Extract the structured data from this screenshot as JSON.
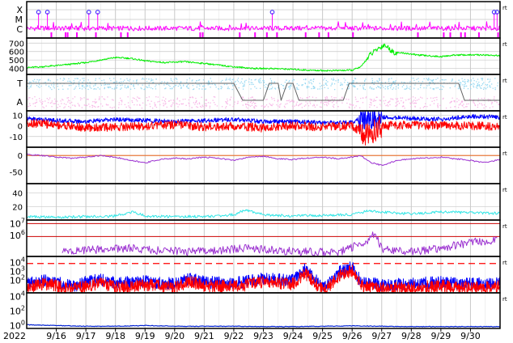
{
  "year_label": "2022",
  "side_marker": "rt",
  "colors": {
    "frame": "#000000",
    "grid": "#c8c8c8",
    "magenta": "#ff00ff",
    "green": "#00ee00",
    "lightblue": "#99d9f2",
    "pink": "#f7b6e6",
    "gray": "#606060",
    "red": "#ff0000",
    "blue": "#0000ff",
    "purple": "#9b30d0",
    "orange": "#e87a3c",
    "cyan": "#33e6e6",
    "darkred": "#cc0000",
    "navy": "#0020d0"
  },
  "chart_data": [
    {
      "id": "flare-class",
      "type": "line",
      "x_ticks": [
        "9/16",
        "9/17",
        "9/18",
        "9/19",
        "9/20",
        "9/21",
        "9/22",
        "9/23",
        "9/24",
        "9/25",
        "9/26",
        "9/27",
        "9/28",
        "9/29",
        "9/30"
      ],
      "y_tick_labels": [
        "X",
        "M",
        "C"
      ],
      "flare_marks_day": [
        15.4,
        15.7,
        17.1,
        17.4,
        23.3,
        30.8,
        30.9
      ],
      "flare_level": "M-X",
      "series": [
        {
          "color_key": "magenta",
          "baseline_class": "C"
        }
      ]
    },
    {
      "id": "solar-wind-speed",
      "type": "line",
      "y_ticks": [
        400,
        500,
        600,
        700
      ],
      "ylim": [
        330,
        760
      ],
      "series": [
        {
          "color_key": "green",
          "profile": [
            [
              15.0,
              410
            ],
            [
              15.5,
              420
            ],
            [
              16.2,
              440
            ],
            [
              17.0,
              470
            ],
            [
              17.5,
              500
            ],
            [
              18.0,
              530
            ],
            [
              18.5,
              520
            ],
            [
              19.0,
              490
            ],
            [
              19.7,
              470
            ],
            [
              20.3,
              480
            ],
            [
              21.0,
              460
            ],
            [
              21.5,
              440
            ],
            [
              22.0,
              420
            ],
            [
              22.7,
              400
            ],
            [
              23.3,
              400
            ],
            [
              24.0,
              390
            ],
            [
              24.5,
              380
            ],
            [
              25.2,
              375
            ],
            [
              26.0,
              380
            ],
            [
              26.3,
              420
            ],
            [
              26.6,
              560
            ],
            [
              26.9,
              640
            ],
            [
              27.1,
              680
            ],
            [
              27.4,
              590
            ],
            [
              27.8,
              580
            ],
            [
              28.2,
              560
            ],
            [
              28.6,
              550
            ],
            [
              29.0,
              540
            ],
            [
              29.5,
              560
            ],
            [
              30.0,
              560
            ],
            [
              30.5,
              560
            ],
            [
              31.0,
              550
            ]
          ]
        }
      ]
    },
    {
      "id": "imf-sector",
      "type": "area",
      "y_tick_labels": [
        "T",
        "A"
      ],
      "series": [
        {
          "color_key": "lightblue",
          "name": "T"
        },
        {
          "color_key": "pink",
          "name": "A"
        },
        {
          "color_key": "gray",
          "sector_levels": [
            [
              15.0,
              1
            ],
            [
              22.0,
              1
            ],
            [
              22.3,
              0
            ],
            [
              23.0,
              0
            ],
            [
              23.2,
              1
            ],
            [
              23.5,
              1
            ],
            [
              23.6,
              0
            ],
            [
              23.8,
              1
            ],
            [
              24.0,
              1
            ],
            [
              24.2,
              0
            ],
            [
              25.7,
              0
            ],
            [
              25.9,
              1
            ],
            [
              29.6,
              1
            ],
            [
              29.8,
              0
            ],
            [
              31.0,
              0
            ]
          ]
        }
      ]
    },
    {
      "id": "imf-components",
      "type": "line",
      "y_ticks": [
        10,
        0,
        -10
      ],
      "ylim": [
        -20,
        14
      ],
      "series": [
        {
          "color_key": "blue",
          "profile": [
            [
              15.0,
              7
            ],
            [
              16.0,
              5
            ],
            [
              17.0,
              4
            ],
            [
              18.0,
              6
            ],
            [
              19.0,
              5
            ],
            [
              20.0,
              4
            ],
            [
              21.0,
              5
            ],
            [
              22.0,
              6
            ],
            [
              23.0,
              4
            ],
            [
              24.0,
              4
            ],
            [
              25.0,
              3
            ],
            [
              26.0,
              3
            ],
            [
              26.5,
              10
            ],
            [
              27.0,
              8
            ],
            [
              28.0,
              7
            ],
            [
              29.0,
              6
            ],
            [
              30.0,
              9
            ],
            [
              31.0,
              8
            ]
          ]
        },
        {
          "color_key": "red",
          "profile": [
            [
              15.0,
              3
            ],
            [
              16.0,
              1
            ],
            [
              17.0,
              -2
            ],
            [
              18.0,
              -1
            ],
            [
              19.0,
              0
            ],
            [
              20.0,
              1
            ],
            [
              21.0,
              -1
            ],
            [
              22.0,
              0
            ],
            [
              23.0,
              -2
            ],
            [
              24.0,
              0
            ],
            [
              25.0,
              -1
            ],
            [
              26.0,
              0
            ],
            [
              26.5,
              -10
            ],
            [
              27.0,
              0
            ],
            [
              28.0,
              1
            ],
            [
              29.0,
              0
            ],
            [
              30.0,
              0
            ],
            [
              31.0,
              -1
            ]
          ]
        }
      ]
    },
    {
      "id": "dst-index",
      "type": "line",
      "y_ticks": [
        0,
        -50
      ],
      "ylim": [
        -85,
        25
      ],
      "series": [
        {
          "color_key": "purple",
          "profile": [
            [
              15.0,
              3
            ],
            [
              15.5,
              0
            ],
            [
              16.0,
              -5
            ],
            [
              16.5,
              -8
            ],
            [
              17.0,
              -5
            ],
            [
              17.5,
              0
            ],
            [
              18.0,
              -5
            ],
            [
              18.5,
              -15
            ],
            [
              19.0,
              -22
            ],
            [
              19.5,
              -12
            ],
            [
              20.0,
              -8
            ],
            [
              20.5,
              -10
            ],
            [
              21.0,
              -5
            ],
            [
              21.5,
              -8
            ],
            [
              22.0,
              -15
            ],
            [
              22.5,
              -5
            ],
            [
              23.0,
              -2
            ],
            [
              23.5,
              -10
            ],
            [
              24.0,
              -12
            ],
            [
              24.5,
              -8
            ],
            [
              25.0,
              -5
            ],
            [
              25.5,
              -10
            ],
            [
              26.0,
              -5
            ],
            [
              26.3,
              0
            ],
            [
              26.6,
              -20
            ],
            [
              27.0,
              -30
            ],
            [
              27.5,
              -15
            ],
            [
              28.0,
              -10
            ],
            [
              28.5,
              -8
            ],
            [
              29.0,
              -5
            ],
            [
              29.5,
              -10
            ],
            [
              30.0,
              -15
            ],
            [
              30.5,
              -22
            ],
            [
              31.0,
              -12
            ]
          ]
        },
        {
          "color_key": "orange",
          "constant": 0
        }
      ]
    },
    {
      "id": "kp-index",
      "type": "line",
      "y_ticks": [
        20,
        40
      ],
      "ylim": [
        0,
        54
      ],
      "series": [
        {
          "color_key": "cyan",
          "profile": [
            [
              15.0,
              5
            ],
            [
              16.0,
              4
            ],
            [
              17.0,
              5
            ],
            [
              18.0,
              6
            ],
            [
              18.6,
              12
            ],
            [
              19.0,
              6
            ],
            [
              20.0,
              5
            ],
            [
              21.0,
              5
            ],
            [
              22.0,
              8
            ],
            [
              22.4,
              15
            ],
            [
              23.0,
              8
            ],
            [
              24.0,
              6
            ],
            [
              25.0,
              7
            ],
            [
              26.0,
              8
            ],
            [
              26.6,
              14
            ],
            [
              27.0,
              12
            ],
            [
              28.0,
              9
            ],
            [
              29.0,
              12
            ],
            [
              30.0,
              11
            ],
            [
              31.0,
              10
            ]
          ]
        }
      ]
    },
    {
      "id": "proton-flux",
      "type": "line",
      "y_tick_labels": [
        "10^7",
        "10^6"
      ],
      "series": [
        {
          "color_key": "darkred",
          "name": "threshold-high",
          "constant_log": 7.0
        },
        {
          "color_key": "darkred",
          "name": "threshold-low",
          "constant_log": 5.9
        },
        {
          "color_key": "purple",
          "profile": [
            [
              16.2,
              4.6
            ],
            [
              17.5,
              4.8
            ],
            [
              18.5,
              4.9
            ],
            [
              19.5,
              4.7
            ],
            [
              20.5,
              4.6
            ],
            [
              21.5,
              4.7
            ],
            [
              22.5,
              4.9
            ],
            [
              23.5,
              4.7
            ],
            [
              24.5,
              4.6
            ],
            [
              25.5,
              4.5
            ],
            [
              26.5,
              5.5
            ],
            [
              26.8,
              6.2
            ],
            [
              27.0,
              4.8
            ],
            [
              28.0,
              4.6
            ],
            [
              29.0,
              4.9
            ],
            [
              30.0,
              5.4
            ],
            [
              30.8,
              5.6
            ]
          ]
        }
      ]
    },
    {
      "id": "electron-flux",
      "type": "line",
      "y_tick_labels": [
        "10^4",
        "10^3",
        "10^2"
      ],
      "ylim_log": [
        0.6,
        4.7
      ],
      "series": [
        {
          "color_key": "red",
          "name": "threshold",
          "constant_log": 3.9
        },
        {
          "color_key": "blue",
          "profile": [
            [
              15.0,
              1.6
            ],
            [
              15.5,
              2.0
            ],
            [
              16.0,
              1.8
            ],
            [
              16.5,
              1.3
            ],
            [
              17.0,
              1.8
            ],
            [
              17.5,
              2.1
            ],
            [
              18.0,
              1.7
            ],
            [
              19.0,
              1.9
            ],
            [
              20.0,
              1.6
            ],
            [
              20.5,
              2.2
            ],
            [
              21.0,
              1.8
            ],
            [
              22.0,
              1.7
            ],
            [
              23.0,
              2.2
            ],
            [
              24.0,
              2.0
            ],
            [
              24.4,
              3.2
            ],
            [
              24.9,
              1.6
            ],
            [
              25.1,
              1.2
            ],
            [
              25.6,
              3.0
            ],
            [
              26.0,
              3.5
            ],
            [
              26.3,
              1.8
            ],
            [
              27.0,
              1.5
            ],
            [
              28.0,
              1.6
            ],
            [
              29.0,
              1.8
            ],
            [
              30.0,
              1.6
            ],
            [
              31.0,
              1.7
            ]
          ]
        },
        {
          "color_key": "red",
          "profile": [
            [
              15.0,
              1.2
            ],
            [
              15.5,
              1.6
            ],
            [
              16.0,
              1.4
            ],
            [
              16.5,
              1.0
            ],
            [
              17.0,
              1.3
            ],
            [
              17.5,
              1.7
            ],
            [
              18.0,
              1.2
            ],
            [
              19.0,
              1.5
            ],
            [
              20.0,
              1.2
            ],
            [
              20.5,
              1.9
            ],
            [
              21.0,
              1.4
            ],
            [
              22.0,
              1.3
            ],
            [
              23.0,
              1.8
            ],
            [
              24.0,
              1.6
            ],
            [
              24.4,
              2.8
            ],
            [
              24.9,
              1.2
            ],
            [
              25.1,
              0.9
            ],
            [
              25.6,
              2.6
            ],
            [
              26.0,
              3.1
            ],
            [
              26.3,
              1.4
            ],
            [
              27.0,
              1.1
            ],
            [
              28.0,
              1.2
            ],
            [
              29.0,
              1.4
            ],
            [
              30.0,
              1.2
            ],
            [
              31.0,
              1.3
            ]
          ]
        }
      ]
    },
    {
      "id": "bottom-flux",
      "type": "line",
      "y_tick_labels": [
        "10^4",
        "10^2",
        "10^0"
      ],
      "ylim_log": [
        -0.4,
        4.5
      ],
      "series": [
        {
          "color_key": "navy",
          "profile": [
            [
              15.0,
              0.1
            ],
            [
              16.0,
              0.0
            ],
            [
              17.0,
              -0.1
            ],
            [
              18.0,
              -0.1
            ],
            [
              19.0,
              0.0
            ],
            [
              20.0,
              -0.1
            ],
            [
              21.0,
              -0.1
            ],
            [
              22.0,
              -0.1
            ],
            [
              23.0,
              -0.15
            ],
            [
              24.0,
              -0.15
            ],
            [
              25.0,
              -0.1
            ],
            [
              26.0,
              -0.05
            ],
            [
              27.0,
              -0.1
            ],
            [
              28.0,
              -0.15
            ],
            [
              29.0,
              -0.15
            ],
            [
              30.0,
              -0.15
            ],
            [
              31.0,
              -0.15
            ]
          ]
        }
      ]
    }
  ]
}
